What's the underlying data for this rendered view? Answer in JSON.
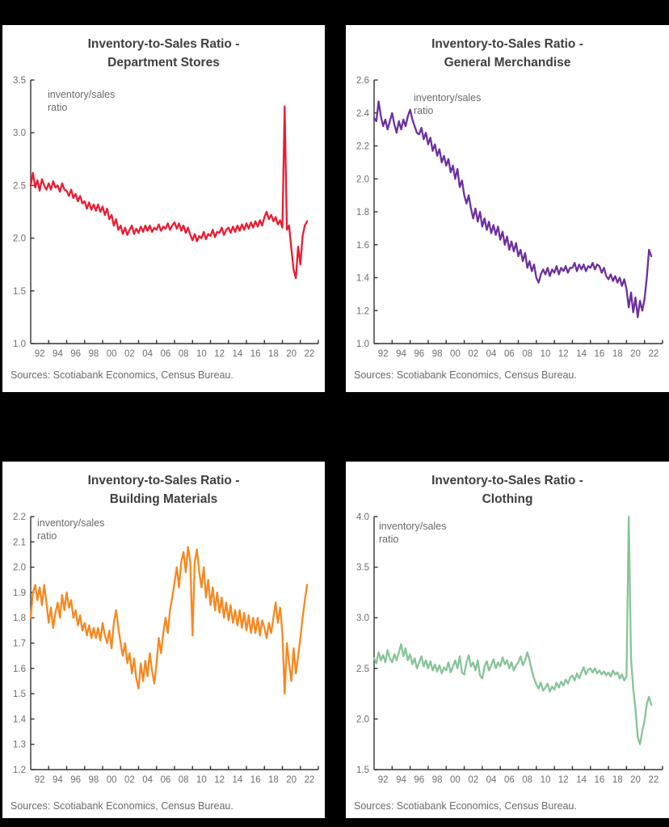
{
  "chart_data": [
    {
      "type": "line",
      "title_line1": "Inventory-to-Sales Ratio -",
      "title_line2": "Department Stores",
      "unit_label_line1": "inventory/sales",
      "unit_label_line2": "ratio",
      "source": "Sources: Scotiabank Economics, Census Bureau.",
      "color": "#ed1b30",
      "grid": false,
      "legend": "none",
      "ylim": [
        1.0,
        3.5
      ],
      "xlim": [
        1992,
        2024
      ],
      "y_ticks": [
        "1.0",
        "1.5",
        "2.0",
        "2.5",
        "3.0",
        "3.5"
      ],
      "x_labels": [
        "92",
        "94",
        "96",
        "98",
        "00",
        "02",
        "04",
        "06",
        "08",
        "10",
        "12",
        "14",
        "16",
        "18",
        "20",
        "22"
      ],
      "series": {
        "name": "Department Stores inventory/sales ratio",
        "x_unit": "year",
        "x_start": 1992.0,
        "x_step": 0.25,
        "values": [
          2.5,
          2.62,
          2.48,
          2.55,
          2.45,
          2.56,
          2.5,
          2.46,
          2.52,
          2.46,
          2.54,
          2.48,
          2.5,
          2.44,
          2.52,
          2.46,
          2.45,
          2.4,
          2.46,
          2.38,
          2.42,
          2.35,
          2.4,
          2.33,
          2.35,
          2.28,
          2.34,
          2.27,
          2.32,
          2.26,
          2.32,
          2.25,
          2.3,
          2.22,
          2.28,
          2.18,
          2.22,
          2.12,
          2.18,
          2.08,
          2.12,
          2.04,
          2.1,
          2.03,
          2.08,
          2.12,
          2.04,
          2.09,
          2.05,
          2.11,
          2.06,
          2.12,
          2.07,
          2.12,
          2.06,
          2.1,
          2.08,
          2.13,
          2.07,
          2.11,
          2.09,
          2.14,
          2.08,
          2.12,
          2.15,
          2.09,
          2.14,
          2.07,
          2.12,
          2.05,
          2.1,
          2.03,
          1.98,
          2.04,
          1.97,
          2.02,
          2.0,
          2.06,
          1.99,
          2.04,
          2.02,
          2.08,
          2.01,
          2.06,
          2.05,
          2.1,
          2.03,
          2.08,
          2.1,
          2.05,
          2.11,
          2.06,
          2.12,
          2.07,
          2.13,
          2.08,
          2.14,
          2.09,
          2.15,
          2.1,
          2.16,
          2.11,
          2.17,
          2.12,
          2.2,
          2.25,
          2.18,
          2.22,
          2.16,
          2.2,
          2.13,
          2.17,
          2.1,
          3.25,
          2.08,
          2.12,
          1.9,
          1.7,
          1.62,
          1.92,
          1.75,
          2.02,
          2.12,
          2.16
        ]
      }
    },
    {
      "type": "line",
      "title_line1": "Inventory-to-Sales Ratio -",
      "title_line2": "General Merchandise",
      "unit_label_line1": "inventory/sales",
      "unit_label_line2": "ratio",
      "source": "Sources: Scotiabank Economics, Census Bureau.",
      "color": "#6d2f9f",
      "grid": false,
      "legend": "none",
      "ylim": [
        1.0,
        2.6
      ],
      "xlim": [
        1992,
        2024
      ],
      "y_ticks": [
        "1.0",
        "1.2",
        "1.4",
        "1.6",
        "1.8",
        "2.0",
        "2.2",
        "2.4",
        "2.6"
      ],
      "x_labels": [
        "92",
        "94",
        "96",
        "98",
        "00",
        "02",
        "04",
        "06",
        "08",
        "10",
        "12",
        "14",
        "16",
        "18",
        "20",
        "22"
      ],
      "series": {
        "name": "General Merchandise inventory/sales ratio",
        "x_unit": "year",
        "x_start": 1992.0,
        "x_step": 0.25,
        "values": [
          2.37,
          2.35,
          2.47,
          2.38,
          2.32,
          2.36,
          2.3,
          2.35,
          2.4,
          2.33,
          2.28,
          2.35,
          2.3,
          2.36,
          2.32,
          2.38,
          2.42,
          2.36,
          2.32,
          2.28,
          2.27,
          2.31,
          2.24,
          2.28,
          2.21,
          2.25,
          2.17,
          2.21,
          2.14,
          2.18,
          2.1,
          2.14,
          2.08,
          2.12,
          2.04,
          2.08,
          2.0,
          2.06,
          1.95,
          1.99,
          1.9,
          1.85,
          1.9,
          1.82,
          1.76,
          1.82,
          1.74,
          1.8,
          1.71,
          1.76,
          1.69,
          1.74,
          1.67,
          1.72,
          1.66,
          1.71,
          1.63,
          1.68,
          1.6,
          1.65,
          1.57,
          1.62,
          1.56,
          1.61,
          1.53,
          1.57,
          1.5,
          1.55,
          1.46,
          1.5,
          1.44,
          1.48,
          1.4,
          1.37,
          1.42,
          1.45,
          1.42,
          1.46,
          1.41,
          1.45,
          1.43,
          1.47,
          1.42,
          1.46,
          1.44,
          1.47,
          1.43,
          1.46,
          1.46,
          1.49,
          1.44,
          1.48,
          1.45,
          1.48,
          1.44,
          1.47,
          1.46,
          1.49,
          1.45,
          1.48,
          1.47,
          1.43,
          1.46,
          1.41,
          1.39,
          1.42,
          1.38,
          1.41,
          1.37,
          1.4,
          1.35,
          1.39,
          1.33,
          1.22,
          1.31,
          1.19,
          1.28,
          1.16,
          1.26,
          1.2,
          1.27,
          1.4,
          1.57,
          1.53
        ]
      }
    },
    {
      "type": "line",
      "title_line1": "Inventory-to-Sales Ratio -",
      "title_line2": "Building Materials",
      "unit_label_line1": "inventory/sales",
      "unit_label_line2": "ratio",
      "source": "Sources: Scotiabank Economics, Census Bureau.",
      "color": "#f8871f",
      "grid": false,
      "legend": "none",
      "ylim": [
        1.2,
        2.2
      ],
      "xlim": [
        1992,
        2024
      ],
      "y_ticks": [
        "1.2",
        "1.3",
        "1.4",
        "1.5",
        "1.6",
        "1.7",
        "1.8",
        "1.9",
        "2.0",
        "2.1",
        "2.2"
      ],
      "x_labels": [
        "92",
        "94",
        "96",
        "98",
        "00",
        "02",
        "04",
        "06",
        "08",
        "10",
        "12",
        "14",
        "16",
        "18",
        "20",
        "22"
      ],
      "series": {
        "name": "Building Materials inventory/sales ratio",
        "x_unit": "year",
        "x_start": 1992.0,
        "x_step": 0.25,
        "values": [
          1.8,
          1.9,
          1.93,
          1.87,
          1.92,
          1.85,
          1.93,
          1.86,
          1.78,
          1.84,
          1.76,
          1.82,
          1.86,
          1.8,
          1.89,
          1.83,
          1.9,
          1.84,
          1.87,
          1.8,
          1.83,
          1.77,
          1.81,
          1.75,
          1.78,
          1.73,
          1.77,
          1.72,
          1.76,
          1.72,
          1.76,
          1.71,
          1.78,
          1.73,
          1.7,
          1.75,
          1.68,
          1.78,
          1.83,
          1.76,
          1.7,
          1.65,
          1.7,
          1.62,
          1.66,
          1.58,
          1.64,
          1.56,
          1.52,
          1.62,
          1.55,
          1.63,
          1.57,
          1.66,
          1.59,
          1.54,
          1.62,
          1.72,
          1.66,
          1.74,
          1.8,
          1.74,
          1.83,
          1.88,
          1.94,
          2.0,
          1.92,
          2.02,
          2.06,
          1.98,
          2.08,
          2.02,
          1.73,
          2.02,
          2.07,
          1.98,
          1.92,
          2.0,
          1.88,
          1.95,
          1.85,
          1.92,
          1.83,
          1.9,
          1.82,
          1.88,
          1.8,
          1.86,
          1.79,
          1.85,
          1.78,
          1.83,
          1.77,
          1.83,
          1.76,
          1.82,
          1.75,
          1.81,
          1.74,
          1.8,
          1.74,
          1.8,
          1.73,
          1.79,
          1.76,
          1.72,
          1.78,
          1.74,
          1.8,
          1.86,
          1.78,
          1.84,
          1.74,
          1.5,
          1.7,
          1.62,
          1.55,
          1.68,
          1.58,
          1.65,
          1.72,
          1.8,
          1.87,
          1.93
        ]
      }
    },
    {
      "type": "line",
      "title_line1": "Inventory-to-Sales Ratio -",
      "title_line2": "Clothing",
      "unit_label_line1": "inventory/sales",
      "unit_label_line2": "ratio",
      "source": "Sources: Scotiabank Economics, Census Bureau.",
      "color": "#86c497",
      "grid": false,
      "legend": "none",
      "ylim": [
        1.5,
        4.0
      ],
      "xlim": [
        1992,
        2024
      ],
      "y_ticks": [
        "1.5",
        "2.0",
        "2.5",
        "3.0",
        "3.5",
        "4.0"
      ],
      "x_labels": [
        "92",
        "94",
        "96",
        "98",
        "00",
        "02",
        "04",
        "06",
        "08",
        "10",
        "12",
        "14",
        "16",
        "18",
        "20",
        "22"
      ],
      "series": {
        "name": "Clothing inventory/sales ratio",
        "x_unit": "year",
        "x_start": 1992.0,
        "x_step": 0.25,
        "values": [
          2.6,
          2.55,
          2.66,
          2.58,
          2.63,
          2.56,
          2.68,
          2.6,
          2.56,
          2.64,
          2.58,
          2.66,
          2.74,
          2.62,
          2.7,
          2.58,
          2.64,
          2.54,
          2.6,
          2.5,
          2.56,
          2.62,
          2.52,
          2.58,
          2.5,
          2.57,
          2.48,
          2.54,
          2.47,
          2.53,
          2.45,
          2.51,
          2.48,
          2.56,
          2.46,
          2.52,
          2.58,
          2.5,
          2.62,
          2.46,
          2.44,
          2.56,
          2.63,
          2.52,
          2.56,
          2.48,
          2.58,
          2.43,
          2.4,
          2.52,
          2.57,
          2.48,
          2.53,
          2.59,
          2.5,
          2.56,
          2.52,
          2.61,
          2.54,
          2.58,
          2.5,
          2.56,
          2.48,
          2.53,
          2.56,
          2.62,
          2.53,
          2.58,
          2.66,
          2.58,
          2.48,
          2.4,
          2.34,
          2.3,
          2.36,
          2.28,
          2.31,
          2.35,
          2.27,
          2.32,
          2.29,
          2.36,
          2.31,
          2.37,
          2.33,
          2.39,
          2.35,
          2.41,
          2.43,
          2.38,
          2.45,
          2.4,
          2.46,
          2.51,
          2.44,
          2.49,
          2.5,
          2.46,
          2.5,
          2.45,
          2.48,
          2.44,
          2.47,
          2.43,
          2.46,
          2.42,
          2.48,
          2.44,
          2.46,
          2.4,
          2.44,
          2.38,
          2.42,
          4.0,
          2.6,
          2.3,
          2.1,
          1.82,
          1.75,
          1.88,
          1.98,
          2.15,
          2.22,
          2.14
        ]
      }
    }
  ]
}
